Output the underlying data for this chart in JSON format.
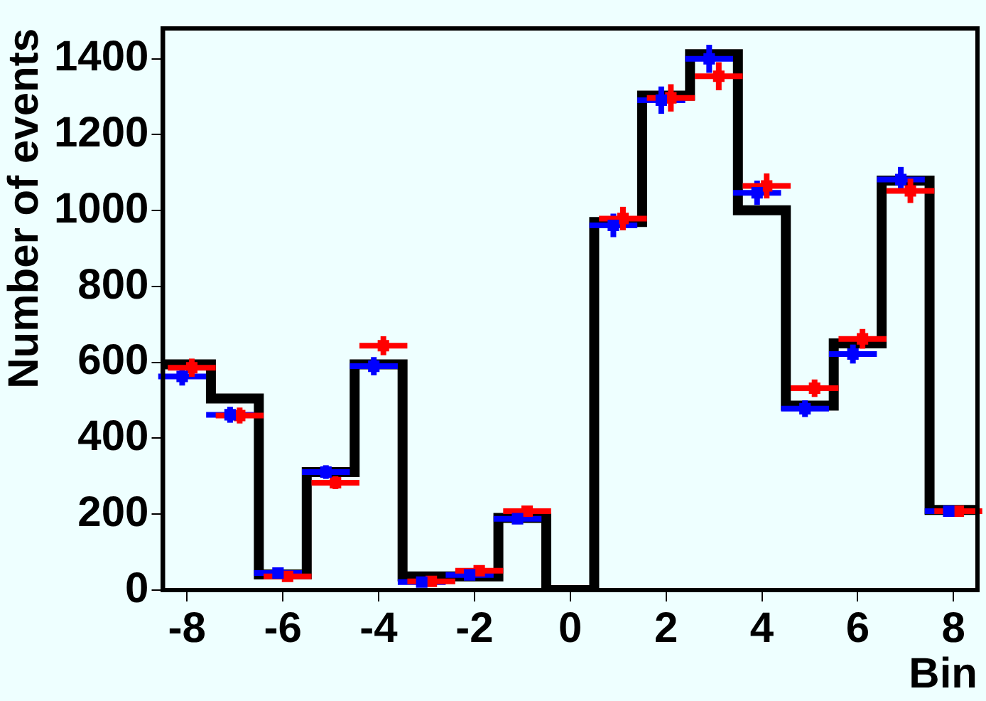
{
  "chart_data": {
    "type": "histogram",
    "xlabel": "Bin",
    "ylabel": "Number of events",
    "bins": [
      -8.5,
      -7.5,
      -6.5,
      -5.5,
      -4.5,
      -3.5,
      -2.5,
      -1.5,
      -0.5,
      0.5,
      1.5,
      2.5,
      3.5,
      4.5,
      5.5,
      6.5,
      7.5,
      8.5
    ],
    "values": [
      595,
      505,
      41,
      311,
      595,
      36,
      36,
      190,
      0,
      970,
      1303,
      1412,
      1001,
      486,
      650,
      1079,
      211
    ],
    "color": "#000000",
    "xlim": [
      -8.5,
      8.5
    ],
    "ylim": [
      0,
      1480
    ],
    "xticks": [
      -8,
      -6,
      -4,
      -2,
      0,
      2,
      4,
      6,
      8
    ],
    "yticks": [
      0,
      200,
      400,
      600,
      800,
      1000,
      1200,
      1400
    ],
    "grid": false,
    "marker": "square",
    "series": [
      {
        "type": "scatter",
        "color": "#0000ff",
        "x": [
          -8.1,
          -7.1,
          -6.1,
          -5.1,
          -4.1,
          -3.1,
          -2.1,
          -1.1,
          0.9,
          1.9,
          2.9,
          3.9,
          4.9,
          5.9,
          6.9,
          7.9
        ],
        "values": [
          563,
          462,
          45,
          311,
          590,
          21,
          40,
          188,
          961,
          1291,
          1400,
          1047,
          478,
          622,
          1082,
          208
        ],
        "errors": [
          24,
          21,
          7,
          18,
          24,
          5,
          6,
          14,
          31,
          36,
          37,
          32,
          22,
          25,
          33,
          14
        ],
        "xerrors": [
          0.5,
          0.5,
          0.5,
          0.5,
          0.5,
          0.5,
          0.5,
          0.5,
          0.5,
          0.5,
          0.5,
          0.5,
          0.5,
          0.5,
          0.5,
          0.5
        ]
      },
      {
        "type": "scatter",
        "color": "#ff0000",
        "x": [
          -7.9,
          -6.9,
          -5.9,
          -4.9,
          -3.9,
          -2.9,
          -1.9,
          -0.9,
          1.1,
          2.1,
          3.1,
          4.1,
          5.1,
          6.1,
          7.1,
          8.1
        ],
        "values": [
          586,
          460,
          36,
          283,
          644,
          23,
          51,
          208,
          979,
          1297,
          1354,
          1065,
          532,
          662,
          1052,
          208
        ],
        "errors": [
          24,
          21,
          6,
          17,
          25,
          5,
          7,
          14,
          31,
          36,
          37,
          33,
          23,
          26,
          32,
          14
        ],
        "xerrors": [
          0.5,
          0.5,
          0.5,
          0.5,
          0.5,
          0.5,
          0.5,
          0.5,
          0.5,
          0.5,
          0.5,
          0.5,
          0.5,
          0.5,
          0.5,
          0.5
        ]
      }
    ]
  }
}
